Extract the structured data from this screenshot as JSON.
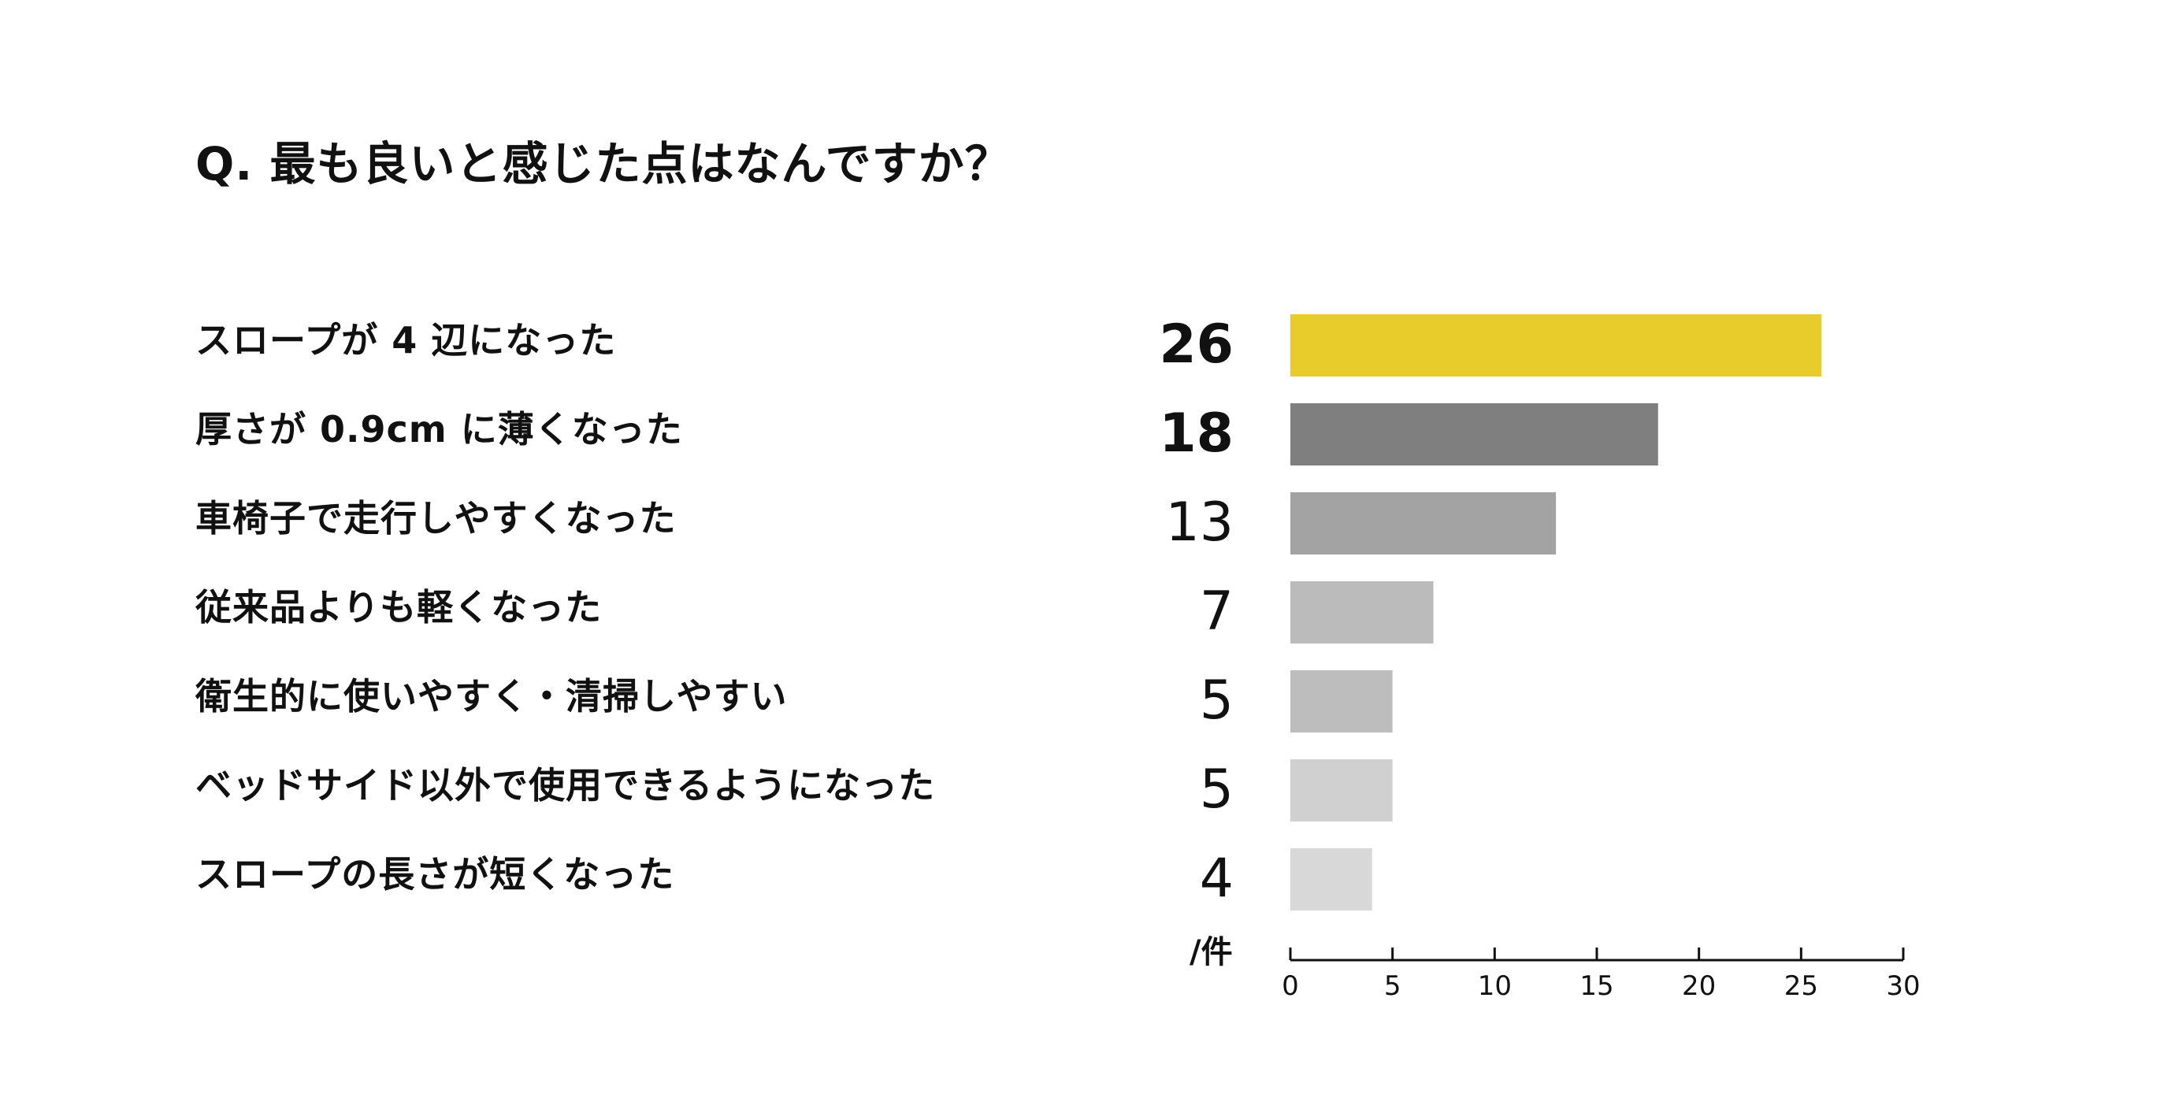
{
  "chart_data": {
    "type": "bar",
    "orientation": "horizontal",
    "title": "Q. 最も良いと感じた点はなんですか？",
    "categories": [
      "スロープが 4 辺になった",
      "厚さが 0.9cm に薄くなった",
      "車椅子で走行しやすくなった",
      "従来品よりも軽くなった",
      "衛生的に使いやすく・清掃しやすい",
      "ベッドサイド以外で使用できるようになった",
      "スロープの長さが短くなった"
    ],
    "values": [
      26,
      18,
      13,
      7,
      5,
      5,
      4
    ],
    "value_labels": [
      "26",
      "18",
      "13",
      "7",
      "5",
      "5",
      "4"
    ],
    "colors": [
      "#e8cc2c",
      "#7f7f7f",
      "#a3a3a3",
      "#bbbbbb",
      "#bdbdbd",
      "#d0d0d0",
      "#d8d8d8"
    ],
    "xlim": [
      0,
      30
    ],
    "xticks": [
      0,
      5,
      10,
      15,
      20,
      25,
      30
    ],
    "xtick_labels": [
      "0",
      "5",
      "10",
      "15",
      "20",
      "25",
      "30"
    ],
    "unit": "/件",
    "grid": false,
    "legend": "none"
  }
}
